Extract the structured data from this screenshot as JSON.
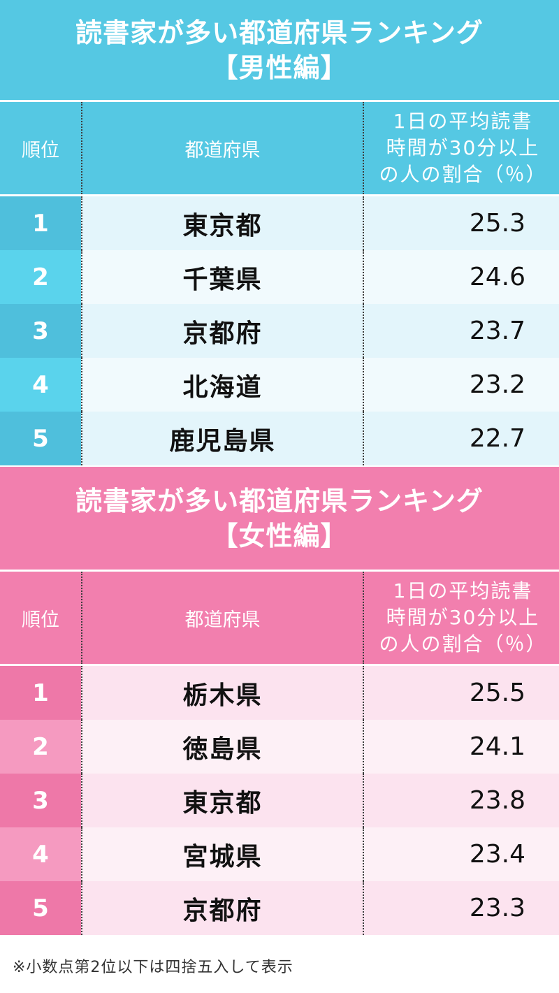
{
  "male": {
    "title_line1": "読書家が多い都道府県ランキング",
    "title_line2": "【男性編】",
    "headers": {
      "rank": "順位",
      "prefecture": "都道府県",
      "value_line1": "1日の平均読書",
      "value_line2": "時間が30分以上",
      "value_line3": "の人の割合（％）"
    },
    "rows": [
      {
        "rank": "1",
        "prefecture": "東京都",
        "value": "25.3"
      },
      {
        "rank": "2",
        "prefecture": "千葉県",
        "value": "24.6"
      },
      {
        "rank": "3",
        "prefecture": "京都府",
        "value": "23.7"
      },
      {
        "rank": "4",
        "prefecture": "北海道",
        "value": "23.2"
      },
      {
        "rank": "5",
        "prefecture": "鹿児島県",
        "value": "22.7"
      }
    ]
  },
  "female": {
    "title_line1": "読書家が多い都道府県ランキング",
    "title_line2": "【女性編】",
    "headers": {
      "rank": "順位",
      "prefecture": "都道府県",
      "value_line1": "1日の平均読書",
      "value_line2": "時間が30分以上",
      "value_line3": "の人の割合（％）"
    },
    "rows": [
      {
        "rank": "1",
        "prefecture": "栃木県",
        "value": "25.5"
      },
      {
        "rank": "2",
        "prefecture": "徳島県",
        "value": "24.1"
      },
      {
        "rank": "3",
        "prefecture": "東京都",
        "value": "23.8"
      },
      {
        "rank": "4",
        "prefecture": "宮城県",
        "value": "23.4"
      },
      {
        "rank": "5",
        "prefecture": "京都府",
        "value": "23.3"
      }
    ]
  },
  "footnote": "※小数点第2位以下は四捨五入して表示",
  "colors": {
    "male_accent": "#55c8e3",
    "female_accent": "#f27fae"
  }
}
